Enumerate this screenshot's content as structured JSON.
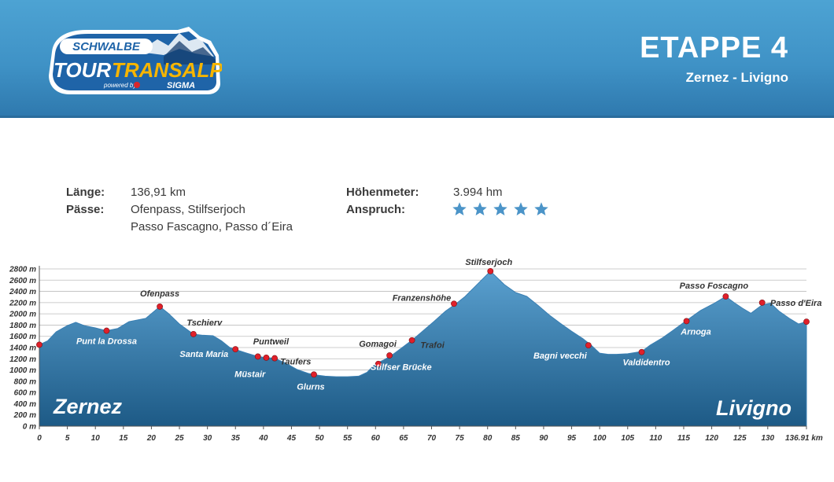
{
  "header": {
    "logo": {
      "brand": "SCHWALBE",
      "line1": "TOUR",
      "line2": "TRANSALP",
      "powered": "powered by",
      "sponsor": "SIGMA"
    },
    "stage_title": "ETAPPE 4",
    "stage_route": "Zernez - Livigno"
  },
  "info": {
    "length_label": "Länge:",
    "length_value": "136,91 km",
    "passes_label": "Pässe:",
    "passes_line1": "Ofenpass, Stilfserjoch",
    "passes_line2": "Passo Fascagno, Passo d´Eira",
    "elevation_label": "Höhenmeter:",
    "elevation_value": "3.994 hm",
    "difficulty_label": "Anspruch:",
    "difficulty_stars": 5
  },
  "colors": {
    "header": "#3f92c6",
    "profile_top": "#4f95c4",
    "profile_bottom": "#1f5f8c",
    "marker": "#e0202a",
    "star": "#4b94c8"
  },
  "chart_data": {
    "type": "area",
    "xlim": [
      0,
      136.91
    ],
    "ylim": [
      0,
      2800
    ],
    "x_ticks": [
      0,
      5,
      10,
      15,
      20,
      25,
      30,
      35,
      40,
      45,
      50,
      55,
      60,
      65,
      70,
      75,
      80,
      85,
      90,
      95,
      100,
      105,
      110,
      115,
      120,
      125,
      130,
      136.91
    ],
    "x_tick_labels": [
      "0",
      "5",
      "10",
      "15",
      "20",
      "25",
      "30",
      "35",
      "40",
      "45",
      "50",
      "55",
      "60",
      "65",
      "70",
      "75",
      "80",
      "85",
      "90",
      "95",
      "100",
      "105",
      "110",
      "115",
      "120",
      "125",
      "130",
      "136.91 km"
    ],
    "y_ticks": [
      0,
      200,
      400,
      600,
      800,
      1000,
      1200,
      1400,
      1600,
      1800,
      2000,
      2200,
      2400,
      2600,
      2800
    ],
    "y_tick_labels": [
      "0 m",
      "200 m",
      "400 m",
      "600 m",
      "800 m",
      "1000 m",
      "1200 m",
      "1400 m",
      "1600 m",
      "1800 m",
      "2000 m",
      "2200 m",
      "2400 m",
      "2600 m",
      "2800 m"
    ],
    "grid": true,
    "start_label": "Zernez",
    "end_label": "Livigno",
    "profile": {
      "x": [
        0,
        1.5,
        3,
        5,
        6.5,
        8,
        10,
        12,
        14,
        16,
        19,
        21.5,
        23,
        25,
        27.5,
        29,
        31,
        32.5,
        34,
        35.5,
        37,
        39,
        40.5,
        42,
        44,
        46,
        48,
        49.5,
        51,
        53,
        55,
        57,
        58.5,
        60,
        61.5,
        63,
        64.5,
        66.5,
        68.5,
        70.5,
        72.5,
        74.5,
        76,
        78,
        80.5,
        83,
        85,
        87,
        89,
        91,
        93,
        95,
        97,
        98.5,
        100,
        101.5,
        103,
        105,
        107.5,
        109,
        111,
        113,
        115.5,
        118,
        120.5,
        122.5,
        124,
        125.5,
        127,
        129,
        130.5,
        132,
        134,
        135.5,
        136.91
      ],
      "y": [
        1450,
        1520,
        1680,
        1790,
        1850,
        1790,
        1750,
        1700,
        1740,
        1860,
        1920,
        2130,
        2010,
        1820,
        1640,
        1620,
        1610,
        1520,
        1400,
        1350,
        1300,
        1240,
        1220,
        1210,
        1120,
        1010,
        940,
        910,
        890,
        880,
        880,
        890,
        960,
        1110,
        1180,
        1270,
        1380,
        1530,
        1700,
        1870,
        2050,
        2190,
        2310,
        2510,
        2760,
        2520,
        2380,
        2310,
        2150,
        1980,
        1830,
        1690,
        1560,
        1440,
        1300,
        1280,
        1280,
        1290,
        1330,
        1440,
        1560,
        1700,
        1880,
        2060,
        2190,
        2310,
        2200,
        2100,
        2010,
        2160,
        2190,
        2050,
        1910,
        1820,
        1860
      ]
    },
    "waypoints": [
      {
        "name": "",
        "x": 0,
        "y": 1450
      },
      {
        "name": "Punt la Drossa",
        "x": 12,
        "y": 1700
      },
      {
        "name": "Ofenpass",
        "x": 21.5,
        "y": 2130
      },
      {
        "name": "Tschierv",
        "x": 27.5,
        "y": 1640
      },
      {
        "name": "Santa Maria",
        "x": 35,
        "y": 1370
      },
      {
        "name": "Müstair",
        "x": 39,
        "y": 1240
      },
      {
        "name": "Puntweil",
        "x": 40.5,
        "y": 1220
      },
      {
        "name": "Taufers",
        "x": 42,
        "y": 1210
      },
      {
        "name": "Glurns",
        "x": 49,
        "y": 920
      },
      {
        "name": "Stilfser Brücke",
        "x": 60.5,
        "y": 1110
      },
      {
        "name": "Gomagoi",
        "x": 62.5,
        "y": 1260
      },
      {
        "name": "Trafoi",
        "x": 66.5,
        "y": 1530
      },
      {
        "name": "Franzenshöhe",
        "x": 74,
        "y": 2180
      },
      {
        "name": "Stilfserjoch",
        "x": 80.5,
        "y": 2760
      },
      {
        "name": "Bagni vecchi",
        "x": 98,
        "y": 1440
      },
      {
        "name": "Valdidentro",
        "x": 107.5,
        "y": 1320
      },
      {
        "name": "Arnoga",
        "x": 115.5,
        "y": 1870
      },
      {
        "name": "Passo Foscagno",
        "x": 122.5,
        "y": 2310
      },
      {
        "name": "Passo d'Eira",
        "x": 129,
        "y": 2200
      },
      {
        "name": "",
        "x": 136.91,
        "y": 1860
      }
    ]
  }
}
